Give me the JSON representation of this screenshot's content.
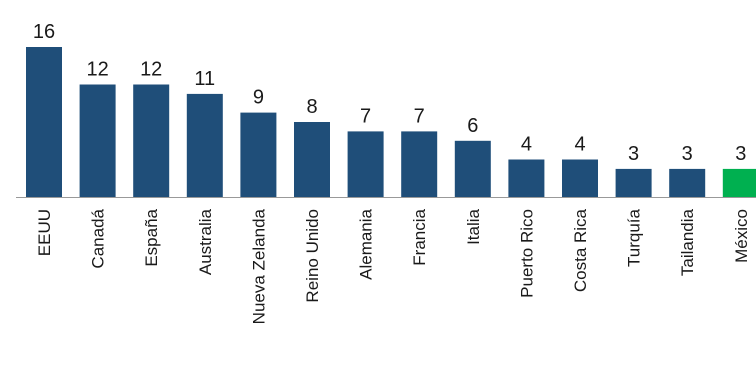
{
  "chart_data": {
    "type": "bar",
    "title": "",
    "xlabel": "",
    "ylabel": "",
    "categories": [
      "EEUU",
      "Canadá",
      "España",
      "Australia",
      "Nueva Zelanda",
      "Reino Unido",
      "Alemania",
      "Francia",
      "Italia",
      "Puerto Rico",
      "Costa Rica",
      "Turquía",
      "Tailandia",
      "México"
    ],
    "values": [
      16,
      12,
      12,
      11,
      9,
      8,
      7,
      7,
      6,
      4,
      4,
      3,
      3,
      3
    ],
    "ylim": [
      0,
      16
    ],
    "data_labels": true,
    "grid": false,
    "legend": "none",
    "colors": {
      "default": "#1f4e79",
      "highlight": "#00b050",
      "axis": "#999999",
      "text": "#1a1a1a"
    },
    "highlight_category": "México"
  }
}
